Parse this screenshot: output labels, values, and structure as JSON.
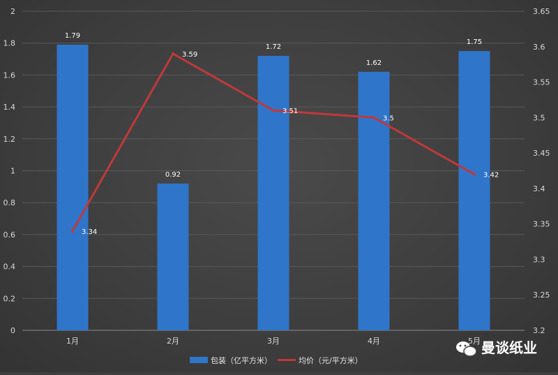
{
  "chart_data": {
    "type": "bar",
    "categories": [
      "1月",
      "2月",
      "3月",
      "4月",
      "5月"
    ],
    "series": [
      {
        "name": "包装（亿平方米）",
        "type": "bar",
        "axis": "left",
        "values": [
          1.79,
          0.92,
          1.72,
          1.62,
          1.75
        ],
        "labels": [
          "1.79",
          "0.92",
          "1.72",
          "1.62",
          "1.75"
        ],
        "color": "#2f75c9"
      },
      {
        "name": "均价（元/平方米）",
        "type": "line",
        "axis": "right",
        "values": [
          3.34,
          3.59,
          3.51,
          3.5,
          3.42
        ],
        "labels": [
          "3.34",
          "3.59",
          "3.51",
          "3.5",
          "3.42"
        ],
        "color": "#c0393b"
      }
    ],
    "y_left": {
      "lim": [
        0,
        2
      ],
      "ticks": [
        "0",
        "0.2",
        "0.4",
        "0.6",
        "0.8",
        "1",
        "1.2",
        "1.4",
        "1.6",
        "1.8",
        "2"
      ]
    },
    "y_right": {
      "lim": [
        3.2,
        3.65
      ],
      "ticks": [
        "3.2",
        "3.25",
        "3.3",
        "3.35",
        "3.4",
        "3.45",
        "3.5",
        "3.55",
        "3.6",
        "3.65"
      ]
    },
    "grid": true,
    "legend_position": "bottom"
  },
  "watermark": {
    "text": "曼谈纸业",
    "icon": "wechat-icon"
  }
}
